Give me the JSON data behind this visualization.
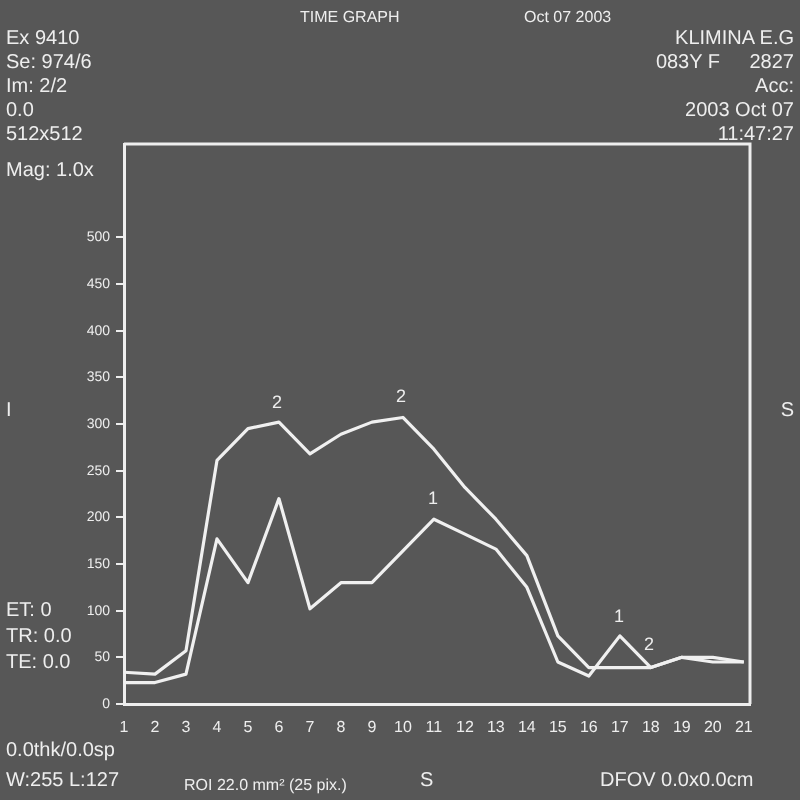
{
  "chart_data": {
    "type": "line",
    "title": "TIME GRAPH",
    "subtitle": "Oct 07 2003",
    "x": [
      1,
      2,
      3,
      4,
      5,
      6,
      7,
      8,
      9,
      10,
      11,
      12,
      13,
      14,
      15,
      16,
      17,
      18,
      19,
      20,
      21
    ],
    "series": [
      {
        "name": "1",
        "color": "#f0f0f0",
        "values": [
          23,
          23,
          32,
          177,
          130,
          220,
          102,
          130,
          130,
          164,
          198,
          182,
          166,
          125,
          45,
          30,
          73,
          39,
          50,
          45,
          45
        ]
      },
      {
        "name": "2",
        "color": "#f0f0f0",
        "values": [
          34,
          32,
          57,
          261,
          295,
          302,
          268,
          289,
          302,
          307,
          273,
          232,
          198,
          159,
          73,
          39,
          39,
          39,
          50,
          50,
          45
        ]
      }
    ],
    "xlim": [
      1,
      21.2
    ],
    "xticks": [
      1,
      2,
      3,
      4,
      5,
      6,
      7,
      8,
      9,
      10,
      11,
      12,
      13,
      14,
      15,
      16,
      17,
      18,
      19,
      20,
      21
    ],
    "ylim": [
      0,
      600
    ],
    "yticks": [
      0,
      50,
      100,
      150,
      200,
      250,
      300,
      350,
      400,
      450,
      500
    ],
    "grid": false,
    "legend": false,
    "marker": "none",
    "line_style": "solid",
    "annotations": [
      "2",
      "2",
      "1",
      "1",
      "2",
      "Ex 9410",
      "Se: 974/6",
      "Im: 2/2",
      "0.0",
      "512x512",
      "Mag: 1.0x",
      "I",
      "ET: 0",
      "TR: 0.0",
      "TE: 0.0",
      "0.0thk/0.0sp",
      "W:255 L:127",
      "ROI 22.0 mm² (25 pix.)",
      "S",
      "DFOV 0.0x0.0cm",
      "KLIMINA E.G",
      "083Y F",
      "2827",
      "Acc:",
      "2003 Oct 07",
      "11:47:27",
      "S"
    ]
  }
}
